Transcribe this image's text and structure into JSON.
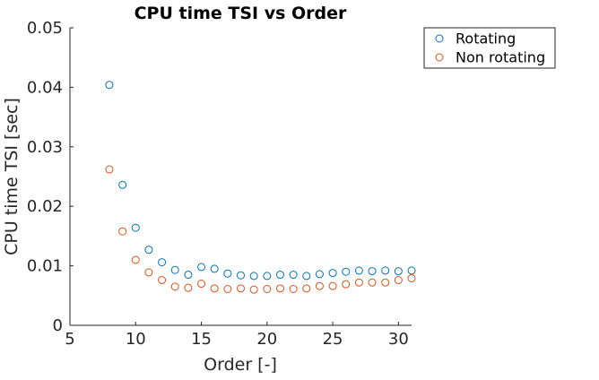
{
  "chart_data": {
    "type": "scatter",
    "title": "CPU time TSI vs Order",
    "xlabel": "Order [-]",
    "ylabel": "CPU time TSI [sec]",
    "xlim": [
      5,
      31
    ],
    "ylim": [
      0,
      0.05
    ],
    "xticks": [
      5,
      10,
      15,
      20,
      25,
      30
    ],
    "yticks": [
      0,
      0.01,
      0.02,
      0.03,
      0.04,
      0.05
    ],
    "xtick_labels": [
      "5",
      "10",
      "15",
      "20",
      "25",
      "30"
    ],
    "ytick_labels": [
      "0",
      "0.01",
      "0.02",
      "0.03",
      "0.04",
      "0.05"
    ],
    "grid": false,
    "legend_position": "outside-top-right",
    "x": [
      8,
      9,
      10,
      11,
      12,
      13,
      14,
      15,
      16,
      17,
      18,
      19,
      20,
      21,
      22,
      23,
      24,
      25,
      26,
      27,
      28,
      29,
      30,
      31
    ],
    "series": [
      {
        "name": "Rotating",
        "color": "#0072BD",
        "values": [
          0.0404,
          0.0236,
          0.0164,
          0.0127,
          0.0106,
          0.0093,
          0.0085,
          0.0098,
          0.0095,
          0.0087,
          0.0084,
          0.0083,
          0.0083,
          0.0085,
          0.0085,
          0.0083,
          0.0086,
          0.0088,
          0.009,
          0.0092,
          0.0091,
          0.0092,
          0.0091,
          0.0092
        ]
      },
      {
        "name": "Non rotating",
        "color": "#D95319",
        "values": [
          0.0262,
          0.0158,
          0.011,
          0.0089,
          0.0076,
          0.0065,
          0.0063,
          0.007,
          0.0062,
          0.0061,
          0.0062,
          0.006,
          0.0061,
          0.0062,
          0.0061,
          0.0062,
          0.0066,
          0.0066,
          0.0069,
          0.0072,
          0.0072,
          0.0072,
          0.0076,
          0.0079
        ]
      }
    ]
  }
}
